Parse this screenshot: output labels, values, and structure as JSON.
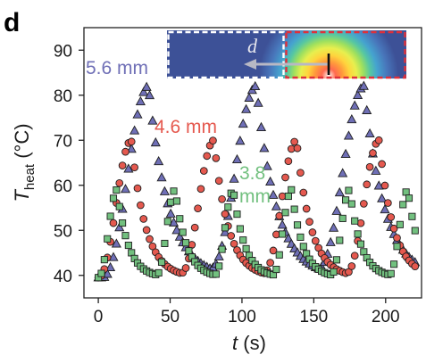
{
  "panel_label": "d",
  "inset": {
    "label": "d"
  },
  "colors": {
    "s1": "#6f6fb6",
    "s2": "#e5594f",
    "s3": "#72c07f",
    "marker_edge": "#1e1e1e",
    "inset_bg": "#3d5197",
    "inset_box_left": "#ffffff",
    "inset_box_right": "#e0303a",
    "inset_arrow": "#b8b8c4",
    "inset_bar": "#111111"
  },
  "chart_data": {
    "type": "scatter",
    "xlabel": {
      "var": "t",
      "unit": " (s)"
    },
    "ylabel": {
      "var": "T",
      "sub": "heat",
      "unit": " (°C)"
    },
    "xlim": [
      -10,
      225
    ],
    "ylim": [
      35,
      95
    ],
    "x_ticks": [
      0,
      50,
      100,
      150,
      200
    ],
    "y_ticks": [
      40,
      50,
      60,
      70,
      80,
      90
    ],
    "grid": false,
    "legend": "none",
    "series": [
      {
        "name": "5.6 mm",
        "marker": "triangle",
        "color": "#6f6fb6",
        "label_lines": [
          "5.6 mm"
        ],
        "params": {
          "t0": 3,
          "period": 75,
          "rise": 32,
          "base": 39.5,
          "peak": 82.0,
          "tau": 14,
          "start": 0,
          "end": 221,
          "step": 2.1
        }
      },
      {
        "name": "4.6 mm",
        "marker": "circle",
        "color": "#e5594f",
        "label_lines": [
          "4.6 mm"
        ],
        "params": {
          "t0": 0,
          "period": 57.5,
          "rise": 23,
          "base": 39.5,
          "peak": 70.0,
          "tau": 10,
          "start": 0,
          "end": 221,
          "step": 2.1
        }
      },
      {
        "name": "3.8 mm",
        "marker": "square",
        "color": "#72c07f",
        "label_lines": [
          "3.8",
          "mm"
        ],
        "params": {
          "t0": 0,
          "period": 40.5,
          "rise": 13,
          "base": 39.5,
          "peak": 59.0,
          "tau": 8,
          "start": 0,
          "end": 221,
          "step": 2.1
        }
      }
    ]
  }
}
